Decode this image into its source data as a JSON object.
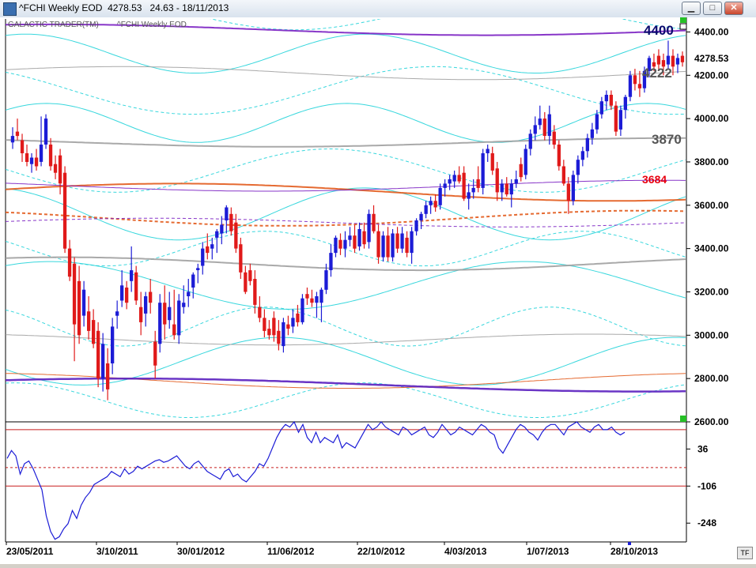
{
  "window": {
    "title": "^FCHI Weekly EOD  4278.53   24.63 - 18/11/2013",
    "buttons": [
      "minimize",
      "maximize",
      "close"
    ]
  },
  "chart_data": {
    "type": "candlestick",
    "legend": [
      "GALACTIC TRADER(TM)",
      "^FCHI Weekly EOD"
    ],
    "last_price": "4278.53",
    "main_yaxis": {
      "ticks": [
        2600,
        2800,
        3000,
        3200,
        3400,
        3600,
        3800,
        4000,
        4200,
        4400
      ],
      "tick_labels": [
        "2600.00",
        "2800.00",
        "3000.00",
        "3200.00",
        "3400.00",
        "3600.00",
        "3800.00",
        "4000.00",
        "4200.00",
        "4400.00"
      ],
      "ylim": [
        2600,
        4460
      ]
    },
    "level_labels": [
      {
        "text": "4400",
        "value": 4400,
        "color": "#0a0a6e"
      },
      {
        "text": "4222",
        "value": 4222,
        "color": "#555555"
      },
      {
        "text": "3870",
        "value": 3870,
        "color": "#555555"
      },
      {
        "text": "3684",
        "value": 3684,
        "color": "#e8000e"
      }
    ],
    "xaxis": {
      "labels": [
        "23/05/2011",
        "3/10/2011",
        "30/01/2012",
        "11/06/2012",
        "22/10/2012",
        "4/03/2013",
        "1/07/2013",
        "28/10/2013"
      ]
    },
    "candles": [
      {
        "o": 3890,
        "h": 3960,
        "l": 3860,
        "c": 3920,
        "up": true
      },
      {
        "o": 3940,
        "h": 4000,
        "l": 3900,
        "c": 3920,
        "up": false
      },
      {
        "o": 3900,
        "h": 3930,
        "l": 3800,
        "c": 3840,
        "up": false
      },
      {
        "o": 3840,
        "h": 3880,
        "l": 3780,
        "c": 3800,
        "up": false
      },
      {
        "o": 3790,
        "h": 3840,
        "l": 3750,
        "c": 3820,
        "up": true
      },
      {
        "o": 3820,
        "h": 3860,
        "l": 3760,
        "c": 3780,
        "up": false
      },
      {
        "o": 3800,
        "h": 4010,
        "l": 3780,
        "c": 3880,
        "up": true
      },
      {
        "o": 3880,
        "h": 4020,
        "l": 3860,
        "c": 4000,
        "up": true
      },
      {
        "o": 3880,
        "h": 3910,
        "l": 3760,
        "c": 3780,
        "up": false
      },
      {
        "o": 3790,
        "h": 3830,
        "l": 3720,
        "c": 3750,
        "up": false
      },
      {
        "o": 3830,
        "h": 3860,
        "l": 3650,
        "c": 3700,
        "up": false
      },
      {
        "o": 3750,
        "h": 3780,
        "l": 3380,
        "c": 3400,
        "up": false
      },
      {
        "o": 3400,
        "h": 3440,
        "l": 3250,
        "c": 3270,
        "up": false
      },
      {
        "o": 3330,
        "h": 3360,
        "l": 2880,
        "c": 3050,
        "up": false
      },
      {
        "o": 3250,
        "h": 3320,
        "l": 2960,
        "c": 3000,
        "up": false
      },
      {
        "o": 3090,
        "h": 3250,
        "l": 3040,
        "c": 3210,
        "up": true
      },
      {
        "o": 3110,
        "h": 3180,
        "l": 2980,
        "c": 3020,
        "up": false
      },
      {
        "o": 3070,
        "h": 3120,
        "l": 2940,
        "c": 2960,
        "up": false
      },
      {
        "o": 3020,
        "h": 3060,
        "l": 2760,
        "c": 2800,
        "up": false
      },
      {
        "o": 2800,
        "h": 3010,
        "l": 2740,
        "c": 2960,
        "up": true
      },
      {
        "o": 2870,
        "h": 2940,
        "l": 2700,
        "c": 2750,
        "up": false
      },
      {
        "o": 2870,
        "h": 3080,
        "l": 2820,
        "c": 3040,
        "up": true
      },
      {
        "o": 3090,
        "h": 3160,
        "l": 3030,
        "c": 3110,
        "up": true
      },
      {
        "o": 3160,
        "h": 3300,
        "l": 3130,
        "c": 3230,
        "up": true
      },
      {
        "o": 3220,
        "h": 3250,
        "l": 3120,
        "c": 3150,
        "up": false
      },
      {
        "o": 3250,
        "h": 3410,
        "l": 3200,
        "c": 3300,
        "up": true
      },
      {
        "o": 3290,
        "h": 3320,
        "l": 3140,
        "c": 3160,
        "up": false
      },
      {
        "o": 3130,
        "h": 3200,
        "l": 3000,
        "c": 3060,
        "up": false
      },
      {
        "o": 3100,
        "h": 3200,
        "l": 3040,
        "c": 3180,
        "up": true
      },
      {
        "o": 3200,
        "h": 3260,
        "l": 3100,
        "c": 3150,
        "up": false
      },
      {
        "o": 2970,
        "h": 3020,
        "l": 2800,
        "c": 2860,
        "up": false
      },
      {
        "o": 2960,
        "h": 3190,
        "l": 2920,
        "c": 3150,
        "up": true
      },
      {
        "o": 3150,
        "h": 3230,
        "l": 2980,
        "c": 3050,
        "up": false
      },
      {
        "o": 3070,
        "h": 3200,
        "l": 3030,
        "c": 3130,
        "up": true
      },
      {
        "o": 3050,
        "h": 3210,
        "l": 2980,
        "c": 3000,
        "up": false
      },
      {
        "o": 3000,
        "h": 3190,
        "l": 2960,
        "c": 3160,
        "up": true
      },
      {
        "o": 3130,
        "h": 3230,
        "l": 3100,
        "c": 3150,
        "up": true
      },
      {
        "o": 3180,
        "h": 3260,
        "l": 3130,
        "c": 3200,
        "up": true
      },
      {
        "o": 3220,
        "h": 3290,
        "l": 3170,
        "c": 3280,
        "up": true
      },
      {
        "o": 3300,
        "h": 3330,
        "l": 3240,
        "c": 3310,
        "up": true
      },
      {
        "o": 3320,
        "h": 3430,
        "l": 3280,
        "c": 3400,
        "up": true
      },
      {
        "o": 3410,
        "h": 3470,
        "l": 3350,
        "c": 3380,
        "up": false
      },
      {
        "o": 3400,
        "h": 3450,
        "l": 3350,
        "c": 3420,
        "up": true
      },
      {
        "o": 3450,
        "h": 3490,
        "l": 3380,
        "c": 3480,
        "up": true
      },
      {
        "o": 3470,
        "h": 3550,
        "l": 3420,
        "c": 3510,
        "up": true
      },
      {
        "o": 3530,
        "h": 3600,
        "l": 3470,
        "c": 3590,
        "up": true
      },
      {
        "o": 3560,
        "h": 3590,
        "l": 3460,
        "c": 3480,
        "up": false
      },
      {
        "o": 3520,
        "h": 3560,
        "l": 3380,
        "c": 3400,
        "up": false
      },
      {
        "o": 3420,
        "h": 3450,
        "l": 3260,
        "c": 3290,
        "up": false
      },
      {
        "o": 3290,
        "h": 3320,
        "l": 3190,
        "c": 3200,
        "up": false
      },
      {
        "o": 3300,
        "h": 3330,
        "l": 3230,
        "c": 3250,
        "up": false
      },
      {
        "o": 3260,
        "h": 3300,
        "l": 3100,
        "c": 3140,
        "up": false
      },
      {
        "o": 3130,
        "h": 3180,
        "l": 3060,
        "c": 3080,
        "up": false
      },
      {
        "o": 3080,
        "h": 3120,
        "l": 2990,
        "c": 3020,
        "up": false
      },
      {
        "o": 3030,
        "h": 3070,
        "l": 2980,
        "c": 3000,
        "up": false
      },
      {
        "o": 3080,
        "h": 3110,
        "l": 2970,
        "c": 3000,
        "up": false
      },
      {
        "o": 3020,
        "h": 3070,
        "l": 2930,
        "c": 2960,
        "up": false
      },
      {
        "o": 2950,
        "h": 3080,
        "l": 2920,
        "c": 3060,
        "up": true
      },
      {
        "o": 3050,
        "h": 3090,
        "l": 3000,
        "c": 3030,
        "up": false
      },
      {
        "o": 3040,
        "h": 3120,
        "l": 3010,
        "c": 3080,
        "up": true
      },
      {
        "o": 3100,
        "h": 3140,
        "l": 3040,
        "c": 3060,
        "up": false
      },
      {
        "o": 3060,
        "h": 3190,
        "l": 3050,
        "c": 3170,
        "up": true
      },
      {
        "o": 3190,
        "h": 3220,
        "l": 3140,
        "c": 3170,
        "up": false
      },
      {
        "o": 3170,
        "h": 3210,
        "l": 3130,
        "c": 3150,
        "up": false
      },
      {
        "o": 3150,
        "h": 3200,
        "l": 3080,
        "c": 3180,
        "up": true
      },
      {
        "o": 3150,
        "h": 3220,
        "l": 3060,
        "c": 3210,
        "up": true
      },
      {
        "o": 3210,
        "h": 3330,
        "l": 3190,
        "c": 3300,
        "up": true
      },
      {
        "o": 3300,
        "h": 3420,
        "l": 3270,
        "c": 3380,
        "up": true
      },
      {
        "o": 3380,
        "h": 3460,
        "l": 3360,
        "c": 3450,
        "up": true
      },
      {
        "o": 3440,
        "h": 3470,
        "l": 3370,
        "c": 3400,
        "up": false
      },
      {
        "o": 3400,
        "h": 3480,
        "l": 3360,
        "c": 3440,
        "up": true
      },
      {
        "o": 3440,
        "h": 3500,
        "l": 3410,
        "c": 3460,
        "up": true
      },
      {
        "o": 3460,
        "h": 3510,
        "l": 3380,
        "c": 3400,
        "up": false
      },
      {
        "o": 3410,
        "h": 3520,
        "l": 3390,
        "c": 3490,
        "up": true
      },
      {
        "o": 3480,
        "h": 3520,
        "l": 3400,
        "c": 3420,
        "up": false
      },
      {
        "o": 3430,
        "h": 3580,
        "l": 3400,
        "c": 3560,
        "up": true
      },
      {
        "o": 3560,
        "h": 3600,
        "l": 3470,
        "c": 3480,
        "up": false
      },
      {
        "o": 3480,
        "h": 3510,
        "l": 3330,
        "c": 3360,
        "up": false
      },
      {
        "o": 3360,
        "h": 3480,
        "l": 3340,
        "c": 3460,
        "up": true
      },
      {
        "o": 3460,
        "h": 3500,
        "l": 3340,
        "c": 3360,
        "up": false
      },
      {
        "o": 3360,
        "h": 3490,
        "l": 3340,
        "c": 3470,
        "up": true
      },
      {
        "o": 3470,
        "h": 3500,
        "l": 3380,
        "c": 3400,
        "up": false
      },
      {
        "o": 3400,
        "h": 3500,
        "l": 3380,
        "c": 3470,
        "up": true
      },
      {
        "o": 3450,
        "h": 3480,
        "l": 3360,
        "c": 3380,
        "up": false
      },
      {
        "o": 3380,
        "h": 3500,
        "l": 3330,
        "c": 3480,
        "up": true
      },
      {
        "o": 3480,
        "h": 3540,
        "l": 3460,
        "c": 3530,
        "up": true
      },
      {
        "o": 3530,
        "h": 3570,
        "l": 3490,
        "c": 3560,
        "up": true
      },
      {
        "o": 3560,
        "h": 3620,
        "l": 3540,
        "c": 3600,
        "up": true
      },
      {
        "o": 3600,
        "h": 3640,
        "l": 3560,
        "c": 3620,
        "up": true
      },
      {
        "o": 3620,
        "h": 3650,
        "l": 3570,
        "c": 3590,
        "up": false
      },
      {
        "o": 3600,
        "h": 3700,
        "l": 3580,
        "c": 3680,
        "up": true
      },
      {
        "o": 3680,
        "h": 3720,
        "l": 3640,
        "c": 3700,
        "up": true
      },
      {
        "o": 3700,
        "h": 3740,
        "l": 3670,
        "c": 3720,
        "up": true
      },
      {
        "o": 3710,
        "h": 3760,
        "l": 3680,
        "c": 3740,
        "up": true
      },
      {
        "o": 3740,
        "h": 3780,
        "l": 3700,
        "c": 3710,
        "up": false
      },
      {
        "o": 3750,
        "h": 3780,
        "l": 3620,
        "c": 3630,
        "up": false
      },
      {
        "o": 3630,
        "h": 3700,
        "l": 3580,
        "c": 3660,
        "up": true
      },
      {
        "o": 3660,
        "h": 3720,
        "l": 3630,
        "c": 3680,
        "up": true
      },
      {
        "o": 3720,
        "h": 3780,
        "l": 3660,
        "c": 3680,
        "up": false
      },
      {
        "o": 3680,
        "h": 3860,
        "l": 3650,
        "c": 3840,
        "up": true
      },
      {
        "o": 3840,
        "h": 3880,
        "l": 3800,
        "c": 3860,
        "up": true
      },
      {
        "o": 3840,
        "h": 3870,
        "l": 3740,
        "c": 3760,
        "up": false
      },
      {
        "o": 3770,
        "h": 3800,
        "l": 3620,
        "c": 3660,
        "up": false
      },
      {
        "o": 3660,
        "h": 3720,
        "l": 3620,
        "c": 3700,
        "up": true
      },
      {
        "o": 3700,
        "h": 3730,
        "l": 3640,
        "c": 3650,
        "up": false
      },
      {
        "o": 3650,
        "h": 3720,
        "l": 3590,
        "c": 3700,
        "up": true
      },
      {
        "o": 3700,
        "h": 3760,
        "l": 3680,
        "c": 3720,
        "up": true
      },
      {
        "o": 3790,
        "h": 3820,
        "l": 3710,
        "c": 3730,
        "up": false
      },
      {
        "o": 3740,
        "h": 3880,
        "l": 3720,
        "c": 3860,
        "up": true
      },
      {
        "o": 3860,
        "h": 3950,
        "l": 3830,
        "c": 3930,
        "up": true
      },
      {
        "o": 3930,
        "h": 4010,
        "l": 3900,
        "c": 3970,
        "up": true
      },
      {
        "o": 3970,
        "h": 4060,
        "l": 3950,
        "c": 4000,
        "up": true
      },
      {
        "o": 4000,
        "h": 4030,
        "l": 3900,
        "c": 3920,
        "up": false
      },
      {
        "o": 3920,
        "h": 4060,
        "l": 3880,
        "c": 4020,
        "up": true
      },
      {
        "o": 3940,
        "h": 3970,
        "l": 3860,
        "c": 3880,
        "up": false
      },
      {
        "o": 3880,
        "h": 3900,
        "l": 3760,
        "c": 3780,
        "up": false
      },
      {
        "o": 3780,
        "h": 3810,
        "l": 3690,
        "c": 3700,
        "up": false
      },
      {
        "o": 3700,
        "h": 3730,
        "l": 3560,
        "c": 3620,
        "up": false
      },
      {
        "o": 3620,
        "h": 3760,
        "l": 3600,
        "c": 3740,
        "up": true
      },
      {
        "o": 3740,
        "h": 3830,
        "l": 3700,
        "c": 3810,
        "up": true
      },
      {
        "o": 3810,
        "h": 3870,
        "l": 3780,
        "c": 3850,
        "up": true
      },
      {
        "o": 3850,
        "h": 3930,
        "l": 3820,
        "c": 3910,
        "up": true
      },
      {
        "o": 3910,
        "h": 3980,
        "l": 3880,
        "c": 3950,
        "up": true
      },
      {
        "o": 3950,
        "h": 4040,
        "l": 3930,
        "c": 4020,
        "up": true
      },
      {
        "o": 4020,
        "h": 4100,
        "l": 4000,
        "c": 4080,
        "up": true
      },
      {
        "o": 4080,
        "h": 4130,
        "l": 4040,
        "c": 4110,
        "up": true
      },
      {
        "o": 4110,
        "h": 4130,
        "l": 4040,
        "c": 4060,
        "up": false
      },
      {
        "o": 4060,
        "h": 4080,
        "l": 3920,
        "c": 3940,
        "up": false
      },
      {
        "o": 3950,
        "h": 4060,
        "l": 3920,
        "c": 4040,
        "up": true
      },
      {
        "o": 4040,
        "h": 4110,
        "l": 4000,
        "c": 4100,
        "up": true
      },
      {
        "o": 4100,
        "h": 4220,
        "l": 4080,
        "c": 4200,
        "up": true
      },
      {
        "o": 4200,
        "h": 4230,
        "l": 4130,
        "c": 4160,
        "up": false
      },
      {
        "o": 4160,
        "h": 4220,
        "l": 4100,
        "c": 4140,
        "up": false
      },
      {
        "o": 4140,
        "h": 4240,
        "l": 4120,
        "c": 4220,
        "up": true
      },
      {
        "o": 4220,
        "h": 4290,
        "l": 4190,
        "c": 4280,
        "up": true
      },
      {
        "o": 4260,
        "h": 4300,
        "l": 4220,
        "c": 4240,
        "up": false
      },
      {
        "o": 4290,
        "h": 4320,
        "l": 4220,
        "c": 4250,
        "up": false
      },
      {
        "o": 4270,
        "h": 4300,
        "l": 4200,
        "c": 4240,
        "up": false
      },
      {
        "o": 4250,
        "h": 4360,
        "l": 4230,
        "c": 4290,
        "up": true
      },
      {
        "o": 4290,
        "h": 4320,
        "l": 4200,
        "c": 4240,
        "up": false
      },
      {
        "o": 4250,
        "h": 4300,
        "l": 4210,
        "c": 4280,
        "up": true
      },
      {
        "o": 4290,
        "h": 4310,
        "l": 4240,
        "c": 4260,
        "up": false
      }
    ],
    "oscillator": {
      "ticks": [
        36,
        -106,
        -248
      ],
      "tick_labels": [
        "36",
        "-106",
        "-248"
      ],
      "ylim": [
        -320,
        140
      ],
      "ref_solid": [
        110,
        -106
      ],
      "ref_dashed": [
        -35
      ],
      "values": [
        0,
        30,
        10,
        -60,
        -20,
        -10,
        -40,
        -80,
        -120,
        -220,
        -280,
        -310,
        -300,
        -270,
        -250,
        -200,
        -230,
        -180,
        -150,
        -130,
        -100,
        -90,
        -80,
        -70,
        -50,
        -60,
        -70,
        -40,
        -60,
        -50,
        -30,
        -40,
        -30,
        -20,
        -10,
        -5,
        -15,
        -10,
        0,
        10,
        -10,
        -30,
        -40,
        -20,
        -10,
        -30,
        -50,
        -60,
        -70,
        -80,
        -50,
        -40,
        -70,
        -60,
        -80,
        -90,
        -70,
        -50,
        -20,
        -30,
        0,
        40,
        80,
        110,
        130,
        120,
        140,
        100,
        130,
        80,
        60,
        100,
        60,
        80,
        70,
        60,
        90,
        40,
        60,
        50,
        40,
        70,
        100,
        130,
        110,
        120,
        140,
        120,
        110,
        100,
        90,
        120,
        110,
        90,
        100,
        110,
        120,
        90,
        80,
        100,
        130,
        110,
        90,
        100,
        120,
        110,
        100,
        90,
        110,
        130,
        120,
        100,
        90,
        40,
        20,
        50,
        80,
        110,
        130,
        120,
        100,
        90,
        70,
        100,
        120,
        130,
        130,
        110,
        90,
        120,
        130,
        140,
        120,
        110,
        100,
        120,
        130,
        110,
        110,
        120,
        100,
        90,
        100
      ]
    }
  }
}
